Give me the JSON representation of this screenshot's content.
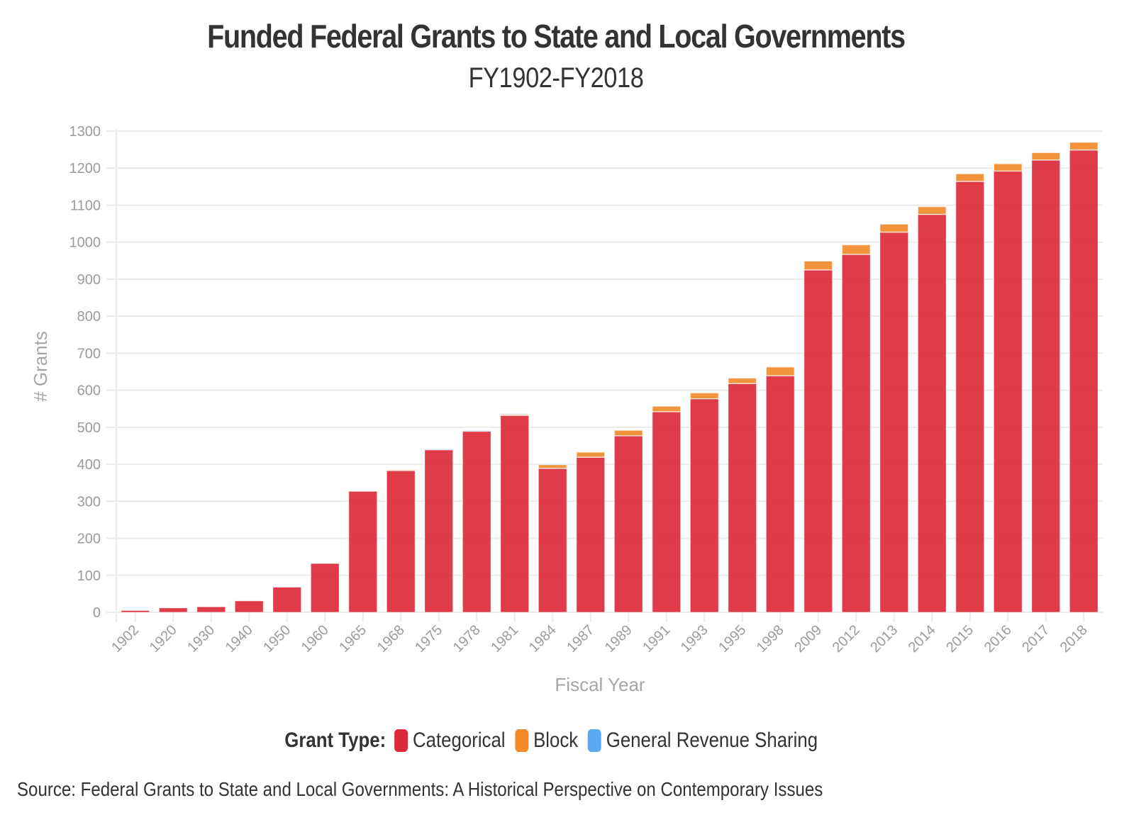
{
  "title": "Funded Federal Grants to State and Local Governments",
  "subtitle": "FY1902-FY2018",
  "legend": {
    "title": "Grant Type:",
    "items": [
      {
        "label": "Categorical",
        "color": "#dd2a3a"
      },
      {
        "label": "Block",
        "color": "#f28a2a"
      },
      {
        "label": "General Revenue Sharing",
        "color": "#5aa9f5"
      }
    ]
  },
  "source": "Source: Federal Grants to State and Local Governments: A Historical Perspective on Contemporary Issues",
  "chart_data": {
    "type": "bar",
    "stacked": true,
    "title": "Funded Federal Grants to State and Local Governments",
    "subtitle": "FY1902-FY2018",
    "xlabel": "Fiscal Year",
    "ylabel": "# Grants",
    "ylim": [
      0,
      1300
    ],
    "yticks": [
      0,
      100,
      200,
      300,
      400,
      500,
      600,
      700,
      800,
      900,
      1000,
      1100,
      1200,
      1300
    ],
    "grid": true,
    "legend_position": "bottom",
    "categories": [
      "1902",
      "1920",
      "1930",
      "1940",
      "1950",
      "1960",
      "1965",
      "1968",
      "1975",
      "1978",
      "1981",
      "1984",
      "1987",
      "1989",
      "1991",
      "1993",
      "1995",
      "1998",
      "2009",
      "2012",
      "2013",
      "2014",
      "2015",
      "2016",
      "2017",
      "2018"
    ],
    "series": [
      {
        "name": "Categorical",
        "color": "#dd2a3a",
        "values": [
          5,
          12,
          15,
          31,
          68,
          132,
          327,
          383,
          440,
          490,
          532,
          389,
          419,
          477,
          542,
          577,
          618,
          639,
          925,
          967,
          1027,
          1075,
          1164,
          1192,
          1222,
          1249
        ]
      },
      {
        "name": "Block",
        "color": "#f28a2a",
        "values": [
          0,
          0,
          0,
          0,
          0,
          0,
          0,
          2,
          0,
          0,
          4,
          11,
          14,
          15,
          15,
          16,
          15,
          24,
          24,
          26,
          22,
          21,
          21,
          20,
          20,
          21
        ]
      },
      {
        "name": "General Revenue Sharing",
        "color": "#5aa9f5",
        "values": [
          0,
          0,
          0,
          0,
          0,
          0,
          0,
          0,
          1,
          1,
          1,
          1,
          0,
          0,
          0,
          0,
          0,
          0,
          0,
          0,
          0,
          0,
          0,
          0,
          0,
          0
        ]
      }
    ]
  }
}
